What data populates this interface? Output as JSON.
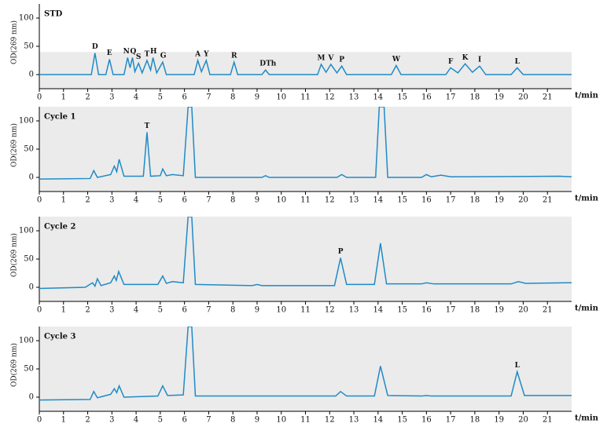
{
  "chart_data": [
    {
      "type": "line",
      "title": "STD",
      "ylabel": "OD(269 nm)",
      "xlabel": "t/min",
      "color": "#1f8bc6",
      "shade_to": 40,
      "xlim": [
        0,
        22
      ],
      "xticks": [
        0,
        1,
        2,
        3,
        4,
        5,
        6,
        7,
        8,
        9,
        10,
        11,
        12,
        13,
        14,
        15,
        16,
        17,
        18,
        19,
        20,
        21
      ],
      "ylim": [
        -25,
        125
      ],
      "yticks": [
        0,
        50,
        100
      ],
      "x": [
        0,
        2.15,
        2.3,
        2.45,
        2.75,
        2.9,
        3.05,
        3.5,
        3.65,
        3.75,
        3.85,
        3.95,
        4.1,
        4.25,
        4.45,
        4.6,
        4.7,
        4.85,
        5.1,
        5.25,
        6.4,
        6.55,
        6.7,
        6.9,
        7.05,
        7.9,
        8.05,
        8.2,
        9.2,
        9.35,
        9.5,
        11.5,
        11.65,
        11.85,
        12.05,
        12.3,
        12.5,
        12.7,
        14.55,
        14.75,
        14.95,
        16.8,
        17,
        17.3,
        17.6,
        17.9,
        18.2,
        18.45,
        19.5,
        19.75,
        20,
        22
      ],
      "values": [
        0,
        0,
        38,
        0,
        0,
        27,
        0,
        0,
        30,
        12,
        30,
        5,
        20,
        3,
        25,
        8,
        30,
        3,
        22,
        0,
        0,
        25,
        5,
        25,
        0,
        0,
        22,
        0,
        0,
        8,
        0,
        0,
        18,
        4,
        18,
        3,
        15,
        0,
        0,
        16,
        0,
        0,
        12,
        3,
        19,
        4,
        15,
        0,
        0,
        12,
        0,
        0
      ],
      "annotations": [
        {
          "text": "D",
          "x": 2.3,
          "y": 38
        },
        {
          "text": "E",
          "x": 2.9,
          "y": 27
        },
        {
          "text": "N",
          "x": 3.6,
          "y": 30
        },
        {
          "text": "Q",
          "x": 3.88,
          "y": 30
        },
        {
          "text": "S",
          "x": 4.1,
          "y": 20
        },
        {
          "text": "T",
          "x": 4.45,
          "y": 25
        },
        {
          "text": "H",
          "x": 4.72,
          "y": 30
        },
        {
          "text": "G",
          "x": 5.12,
          "y": 22
        },
        {
          "text": "A",
          "x": 6.55,
          "y": 25
        },
        {
          "text": "Y",
          "x": 6.9,
          "y": 25
        },
        {
          "text": "R",
          "x": 8.05,
          "y": 22
        },
        {
          "text": "DTh",
          "x": 9.45,
          "y": 8
        },
        {
          "text": "M",
          "x": 11.65,
          "y": 18
        },
        {
          "text": "V",
          "x": 12.05,
          "y": 18
        },
        {
          "text": "P",
          "x": 12.5,
          "y": 15
        },
        {
          "text": "W",
          "x": 14.75,
          "y": 16
        },
        {
          "text": "F",
          "x": 17,
          "y": 12
        },
        {
          "text": "K",
          "x": 17.6,
          "y": 19
        },
        {
          "text": "I",
          "x": 18.2,
          "y": 15
        },
        {
          "text": "L",
          "x": 19.75,
          "y": 12
        }
      ]
    },
    {
      "type": "line",
      "title": "Cycle 1",
      "ylabel": "OD(269 nm)",
      "xlabel": "t/min",
      "color": "#1f8bc6",
      "xlim": [
        0,
        22
      ],
      "xticks": [
        0,
        1,
        2,
        3,
        4,
        5,
        6,
        7,
        8,
        9,
        10,
        11,
        12,
        13,
        14,
        15,
        16,
        17,
        18,
        19,
        20,
        21
      ],
      "ylim": [
        -25,
        125
      ],
      "yticks": [
        0,
        50,
        100
      ],
      "x": [
        0,
        2.1,
        2.25,
        2.4,
        2.95,
        3.1,
        3.2,
        3.3,
        3.5,
        4.3,
        4.45,
        4.6,
        5.0,
        5.1,
        5.25,
        5.5,
        5.95,
        6.15,
        6.3,
        6.45,
        9.2,
        9.35,
        9.5,
        12.3,
        12.5,
        12.7,
        13.9,
        14.05,
        14.25,
        14.4,
        15.8,
        16,
        16.2,
        16.6,
        17,
        21.5,
        22
      ],
      "values": [
        -3,
        -2,
        12,
        0,
        5,
        20,
        10,
        32,
        2,
        2,
        80,
        2,
        3,
        15,
        3,
        5,
        3,
        125,
        125,
        0,
        0,
        3,
        0,
        0,
        5,
        0,
        0,
        125,
        125,
        0,
        0,
        5,
        1,
        4,
        1,
        2,
        1
      ],
      "annotations": [
        {
          "text": "T",
          "x": 4.45,
          "y": 80
        }
      ]
    },
    {
      "type": "line",
      "title": "Cycle 2",
      "ylabel": "OD(269 nm)",
      "xlabel": "t/min",
      "color": "#1f8bc6",
      "xlim": [
        0,
        22
      ],
      "xticks": [
        0,
        1,
        2,
        3,
        4,
        5,
        6,
        7,
        8,
        9,
        10,
        11,
        12,
        13,
        14,
        15,
        16,
        17,
        18,
        19,
        20,
        21
      ],
      "ylim": [
        -25,
        125
      ],
      "yticks": [
        0,
        50,
        100
      ],
      "x": [
        0,
        1.9,
        2.2,
        2.3,
        2.4,
        2.55,
        2.95,
        3.1,
        3.18,
        3.28,
        3.5,
        4.9,
        5.1,
        5.25,
        5.5,
        5.95,
        6.15,
        6.3,
        6.45,
        8.8,
        9.0,
        9.2,
        12.2,
        12.45,
        12.7,
        13.85,
        14.1,
        14.35,
        15.8,
        16,
        16.3,
        19.5,
        19.8,
        20.1,
        21.8,
        22
      ],
      "values": [
        -2,
        0,
        8,
        2,
        15,
        3,
        8,
        20,
        12,
        28,
        5,
        5,
        20,
        7,
        10,
        8,
        125,
        125,
        5,
        3,
        5,
        3,
        3,
        52,
        5,
        5,
        78,
        6,
        6,
        8,
        6,
        6,
        10,
        7,
        8,
        8
      ],
      "annotations": [
        {
          "text": "P",
          "x": 12.45,
          "y": 52
        }
      ]
    },
    {
      "type": "line",
      "title": "Cycle 3",
      "ylabel": "OD(269 nm)",
      "xlabel": "t/min",
      "color": "#1f8bc6",
      "xlim": [
        0,
        22
      ],
      "xticks": [
        0,
        1,
        2,
        3,
        4,
        5,
        6,
        7,
        8,
        9,
        10,
        11,
        12,
        13,
        14,
        15,
        16,
        17,
        18,
        19,
        20,
        21
      ],
      "ylim": [
        -25,
        125
      ],
      "yticks": [
        0,
        50,
        100
      ],
      "x": [
        0,
        2.1,
        2.25,
        2.4,
        2.95,
        3.1,
        3.2,
        3.3,
        3.5,
        4.9,
        5.1,
        5.3,
        5.95,
        6.15,
        6.3,
        6.45,
        12.25,
        12.45,
        12.7,
        13.85,
        14.1,
        14.4,
        15.8,
        16,
        16.2,
        19.5,
        19.75,
        20.05,
        22
      ],
      "values": [
        -5,
        -4,
        10,
        -1,
        5,
        15,
        8,
        20,
        0,
        2,
        20,
        3,
        4,
        125,
        125,
        2,
        2,
        10,
        2,
        2,
        55,
        3,
        2,
        3,
        2,
        2,
        45,
        3,
        3
      ],
      "annotations": [
        {
          "text": "L",
          "x": 19.75,
          "y": 45
        }
      ]
    }
  ]
}
